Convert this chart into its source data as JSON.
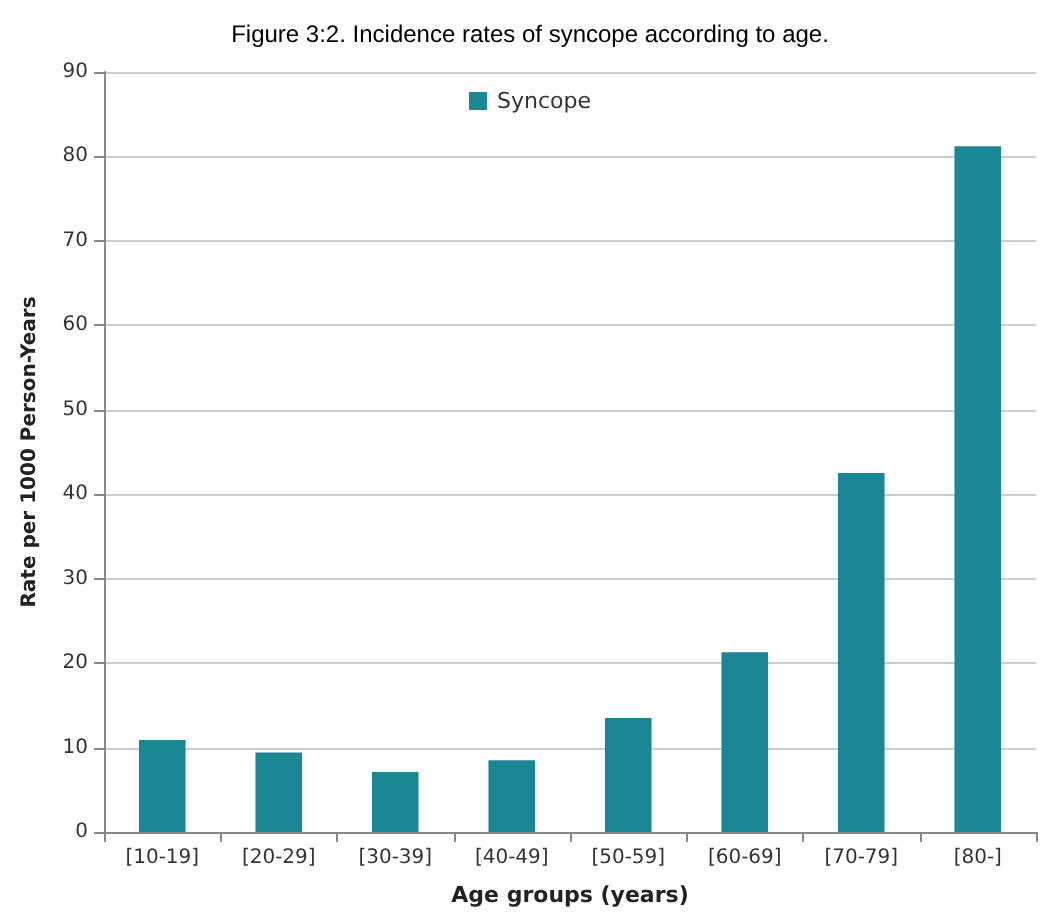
{
  "chart_data": {
    "type": "bar",
    "title": "Figure 3:2. Incidence rates of syncope according to age.",
    "xlabel": "Age groups (years)",
    "ylabel": "Rate per 1000 Person-Years",
    "categories": [
      "[10-19]",
      "[20-29]",
      "[30-39]",
      "[40-49]",
      "[50-59]",
      "[60-69]",
      "[70-79]",
      "[80-]"
    ],
    "series": [
      {
        "name": "Syncope",
        "color": "#1b8795",
        "values": [
          10.9,
          9.4,
          7.1,
          8.5,
          13.5,
          21.3,
          42.5,
          81.2
        ]
      }
    ],
    "ylim": [
      0,
      90
    ],
    "yticks": [
      0,
      10,
      20,
      30,
      40,
      50,
      60,
      70,
      80,
      90
    ],
    "grid": "y",
    "legend": "top"
  }
}
